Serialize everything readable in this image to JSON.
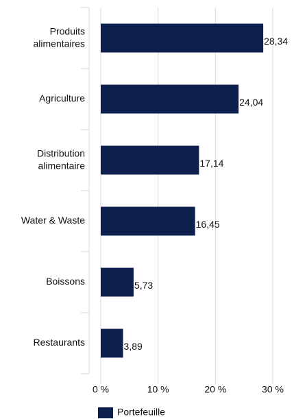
{
  "chart_data": {
    "type": "hbar",
    "categories": [
      "Produits\nalimentaires",
      "Agriculture",
      "Distribution\nalimentaire",
      "Water & Waste",
      "Boissons",
      "Restaurants"
    ],
    "series": [
      {
        "name": "Portefeuille",
        "color": "#0d1f4d",
        "values": [
          28.34,
          24.04,
          17.14,
          16.45,
          5.73,
          3.89
        ],
        "value_labels": [
          "28,34",
          "24,04",
          "17,14",
          "16,45",
          "5,73",
          "3,89"
        ]
      }
    ],
    "xlim": [
      0,
      30
    ],
    "xticks": [
      {
        "value": 0,
        "label": "0 %"
      },
      {
        "value": 10,
        "label": "10 %"
      },
      {
        "value": 20,
        "label": "20 %"
      },
      {
        "value": 30,
        "label": "30 %"
      }
    ],
    "grid": true,
    "legend": "bottom"
  }
}
